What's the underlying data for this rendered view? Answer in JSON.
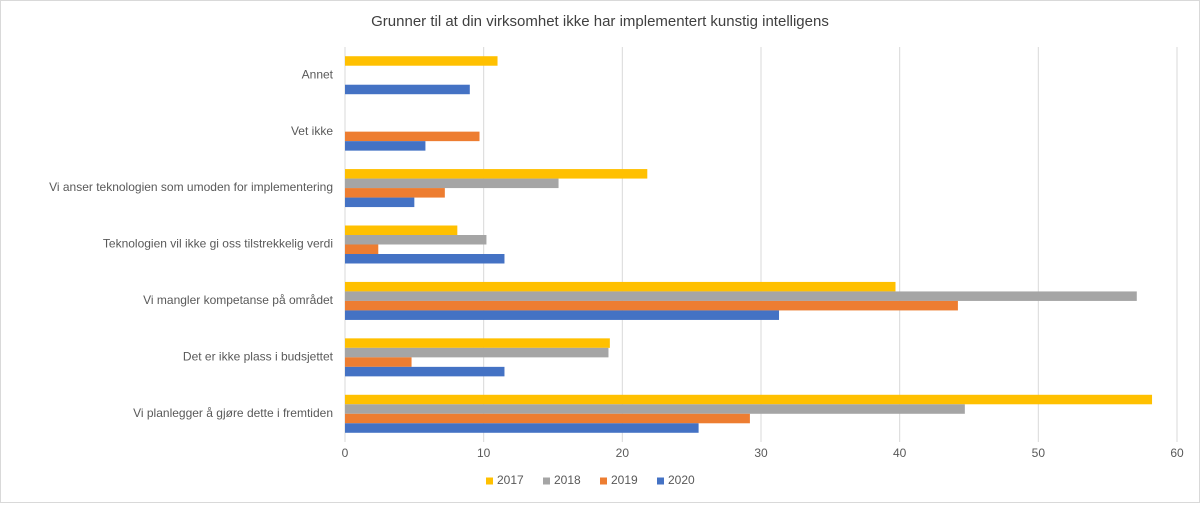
{
  "chart_data": {
    "type": "barh",
    "title": "Grunner til at din virksomhet ikke har implementert kunstig intelligens",
    "categories": [
      "Annet",
      "Vet ikke",
      "Vi anser teknologien som umoden for implementering",
      "Teknologien vil ikke gi oss tilstrekkelig verdi",
      "Vi mangler kompetanse på området",
      "Det er ikke plass i budsjettet",
      "Vi planlegger å gjøre dette i fremtiden"
    ],
    "series": [
      {
        "name": "2017",
        "color": "#ffc000",
        "values": [
          11.0,
          null,
          21.8,
          8.1,
          39.7,
          19.1,
          58.2
        ]
      },
      {
        "name": "2018",
        "color": "#a5a5a5",
        "values": [
          null,
          null,
          15.4,
          10.2,
          57.1,
          19.0,
          44.7
        ]
      },
      {
        "name": "2019",
        "color": "#ed7d31",
        "values": [
          null,
          9.7,
          7.2,
          2.4,
          44.2,
          4.8,
          29.2
        ]
      },
      {
        "name": "2020",
        "color": "#4472c4",
        "values": [
          9.0,
          5.8,
          5.0,
          11.5,
          31.3,
          11.5,
          25.5
        ]
      }
    ],
    "xlim": [
      0,
      60
    ],
    "xticks": [
      0,
      10,
      20,
      30,
      40,
      50,
      60
    ],
    "grid": true,
    "legend": "bottom"
  }
}
